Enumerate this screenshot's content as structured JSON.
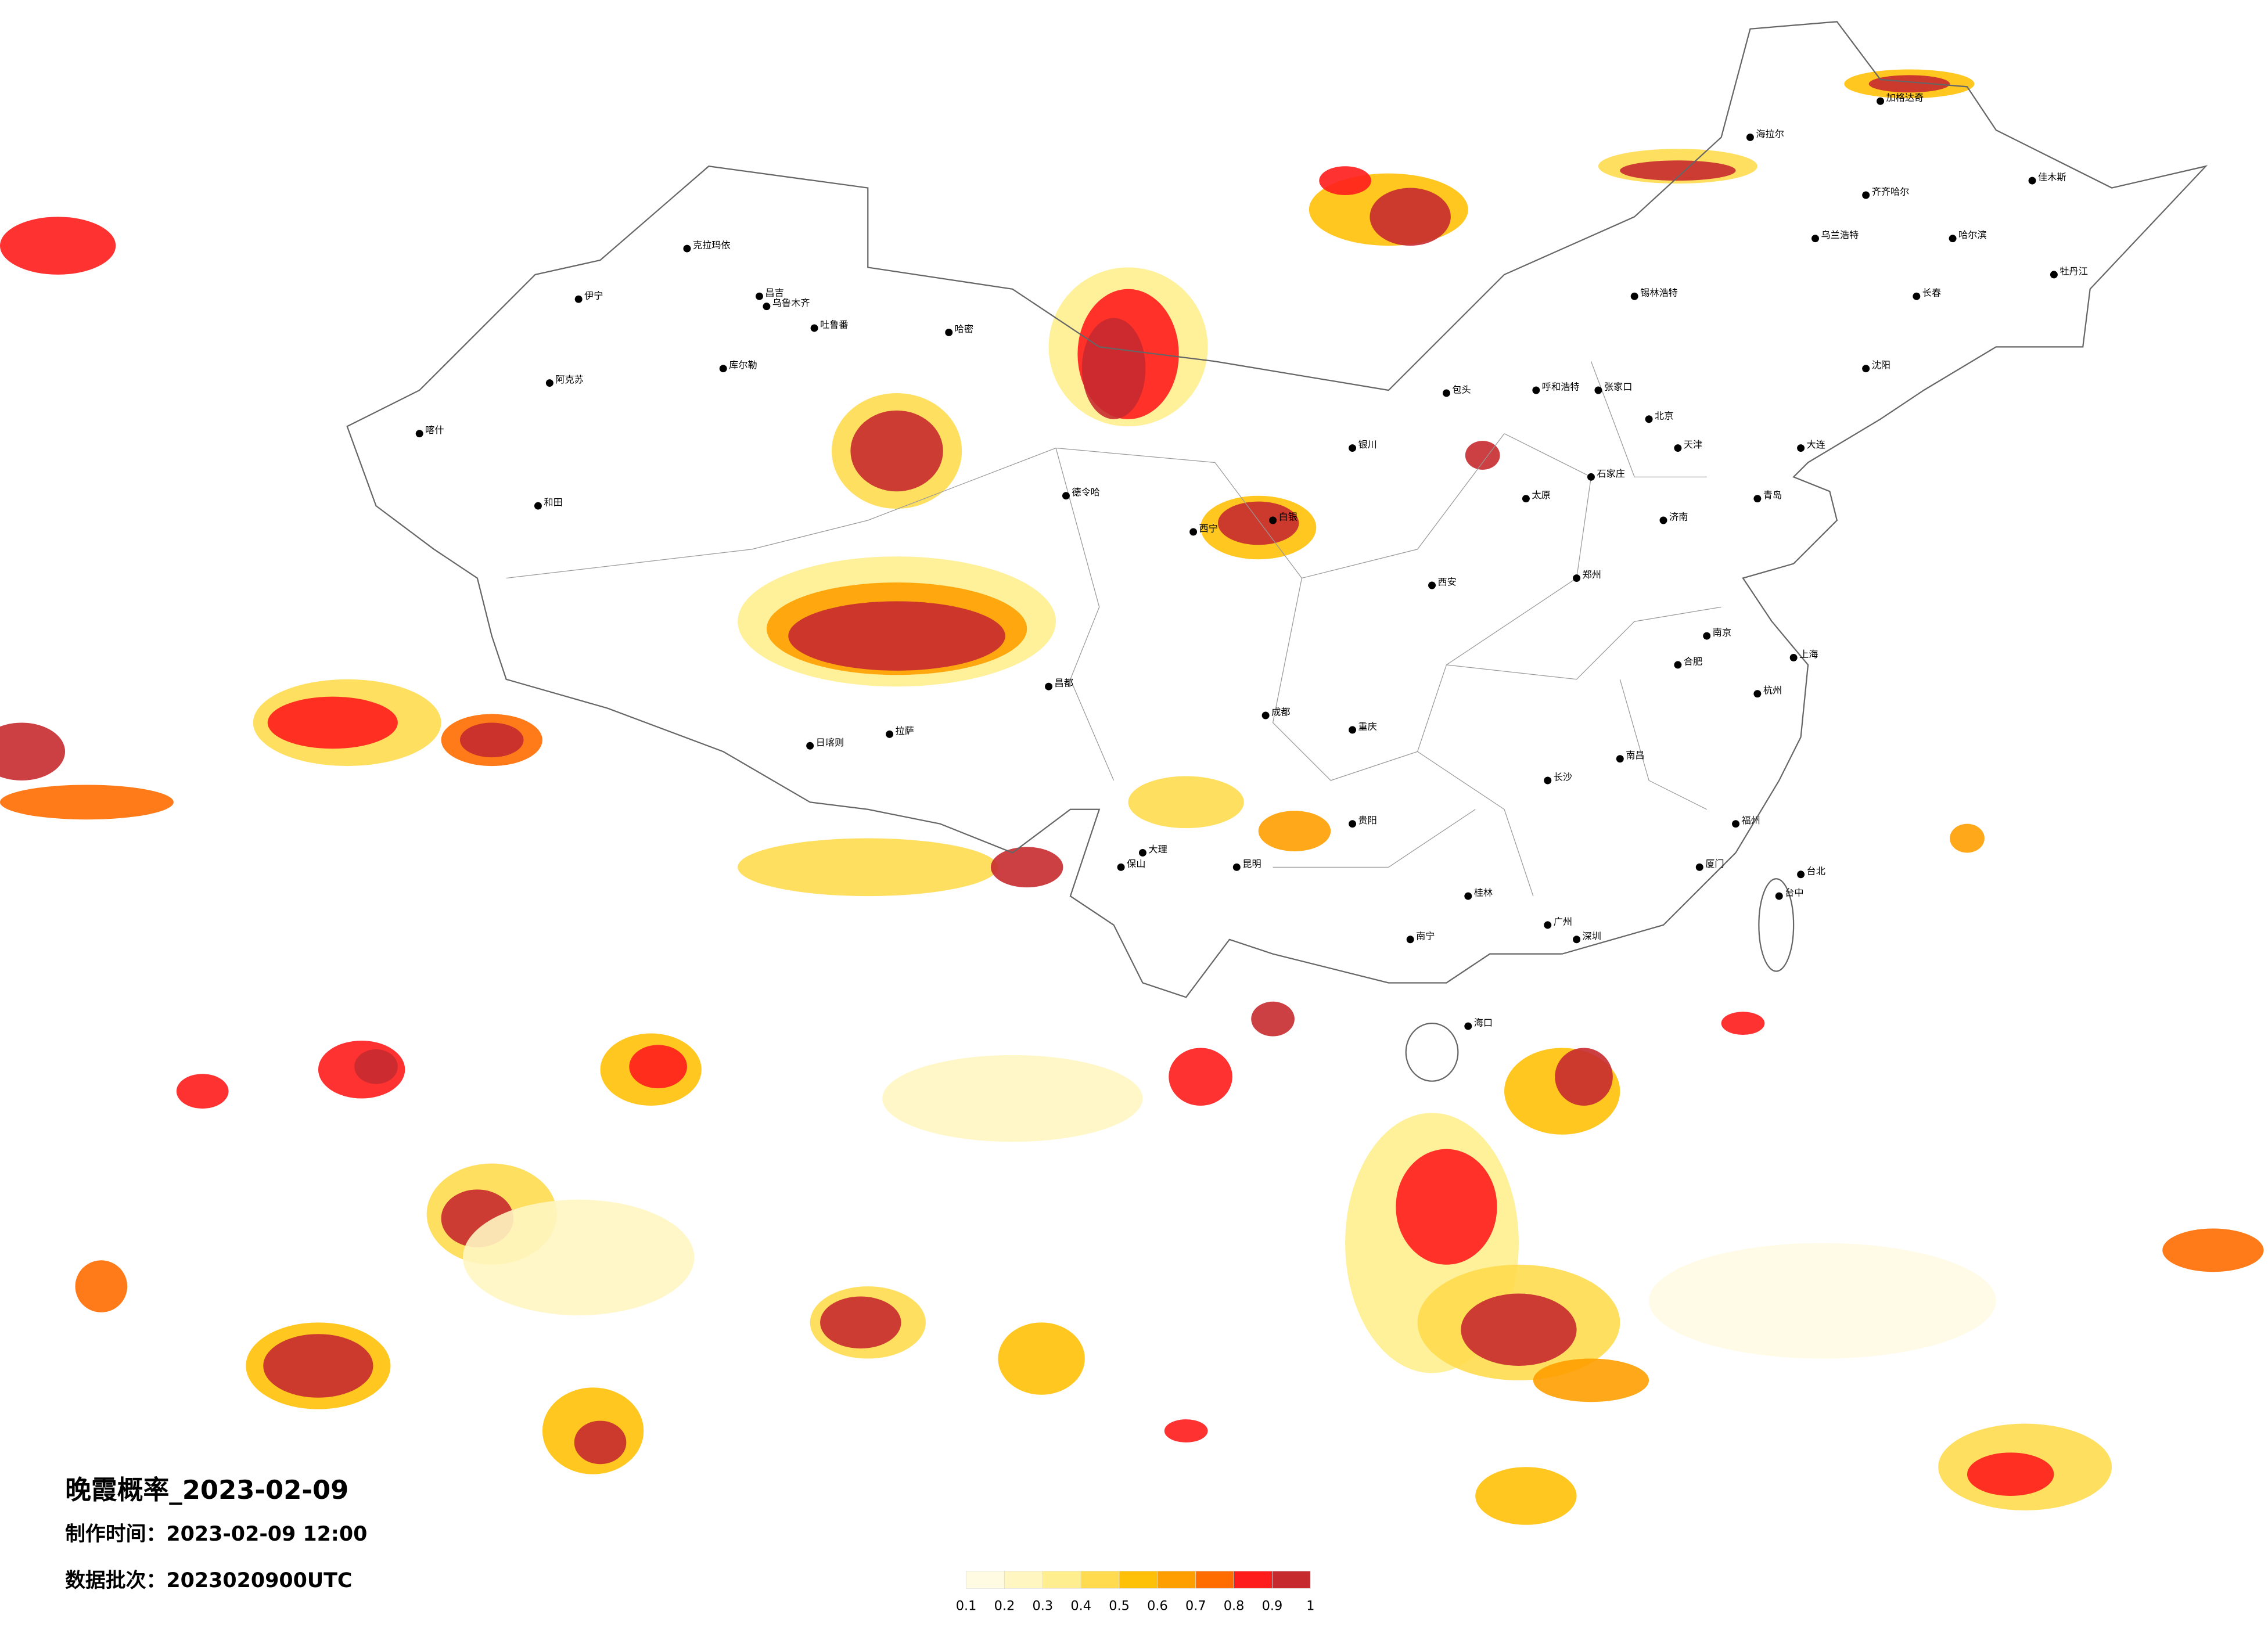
{
  "title": "晚霞概率_2023-02-09",
  "made_time": "制作时间：2023-02-09 12:00",
  "batch": "数据批次：2023020900UTC",
  "legend": {
    "colors": [
      "#fffbe3",
      "#fff6c2",
      "#ffee8f",
      "#ffdc4f",
      "#ffc107",
      "#ff9e00",
      "#ff6d00",
      "#ff1c1c",
      "#c62a2f"
    ],
    "ticks": [
      0.1,
      0.2,
      0.3,
      0.4,
      0.5,
      0.6,
      0.7,
      0.8,
      0.9,
      1
    ]
  },
  "cities": [
    "克拉玛依",
    "伊宁",
    "昌吉",
    "乌鲁木齐",
    "吐鲁番",
    "哈密",
    "库尔勒",
    "阿克苏",
    "喀什",
    "和田",
    "德令哈",
    "西宁",
    "白银",
    "拉萨",
    "日喀则",
    "昌都",
    "呼和浩特",
    "包头",
    "北京",
    "天津",
    "石家庄",
    "太原",
    "济南",
    "郑州",
    "西安",
    "南京",
    "上海",
    "杭州",
    "合肥",
    "长沙",
    "南昌",
    "福州",
    "广州",
    "南宁",
    "贵阳",
    "昆明",
    "成都",
    "重庆",
    "哈尔滨",
    "长春",
    "沈阳",
    "大连",
    "海口",
    "台北",
    "台中",
    "加格达奇",
    "海拉尔",
    "齐齐哈尔",
    "乌兰浩特",
    "锡林浩特",
    "张家口",
    "银川",
    "佳木斯",
    "牡丹江",
    "青岛",
    "厦门",
    "深圳",
    "桂林",
    "大理",
    "保山"
  ]
}
